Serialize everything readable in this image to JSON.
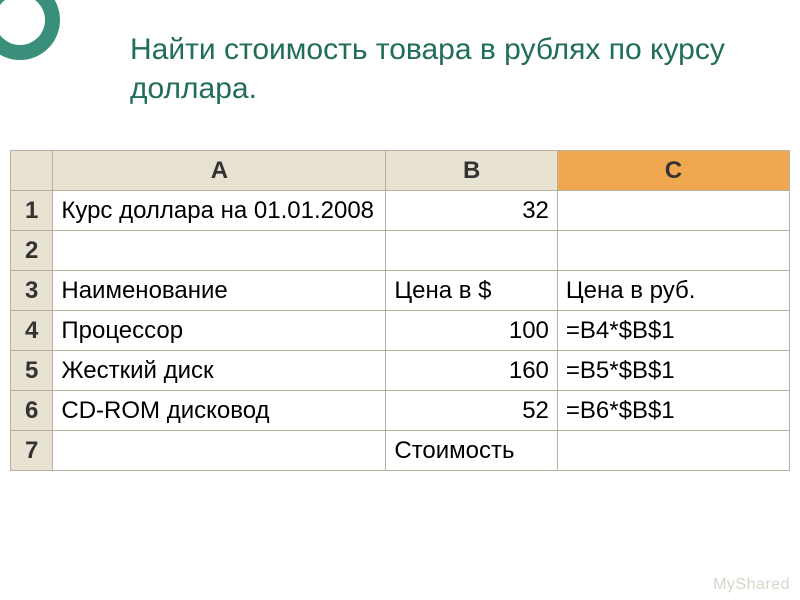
{
  "title": "Найти стоимость товара в рублях по курсу доллара.",
  "watermark": "MyShared",
  "columns": {
    "blank": "",
    "A": "A",
    "B": "B",
    "C": "C"
  },
  "colors": {
    "header_bg": "#e8e2d2",
    "active_header_bg": "#f0a850",
    "border": "#b8b0a0",
    "title_color": "#1f6d5a",
    "deco_color": "#3a8f7a",
    "cell_bg": "#ffffff"
  },
  "rows": [
    {
      "n": "1",
      "A": "Курс доллара на 01.01.2008",
      "A_align": "left",
      "B": "32",
      "B_align": "right",
      "C": "",
      "C_align": "left"
    },
    {
      "n": "2",
      "A": "",
      "A_align": "left",
      "B": "",
      "B_align": "right",
      "C": "",
      "C_align": "left"
    },
    {
      "n": "3",
      "A": "Наименование",
      "A_align": "left",
      "B": "Цена в $",
      "B_align": "left",
      "C": "Цена в руб.",
      "C_align": "left"
    },
    {
      "n": "4",
      "A": "Процессор",
      "A_align": "left",
      "B": "100",
      "B_align": "right",
      "C": "=B4*$B$1",
      "C_align": "left"
    },
    {
      "n": "5",
      "A": "Жесткий диск",
      "A_align": "left",
      "B": "160",
      "B_align": "right",
      "C": "=B5*$B$1",
      "C_align": "left"
    },
    {
      "n": "6",
      "A": "CD-ROM дисковод",
      "A_align": "left",
      "B": "52",
      "B_align": "right",
      "C": "=B6*$B$1",
      "C_align": "left"
    },
    {
      "n": "7",
      "A": "",
      "A_align": "left",
      "B": "Стоимость",
      "B_align": "left",
      "C": "",
      "C_align": "left"
    }
  ]
}
